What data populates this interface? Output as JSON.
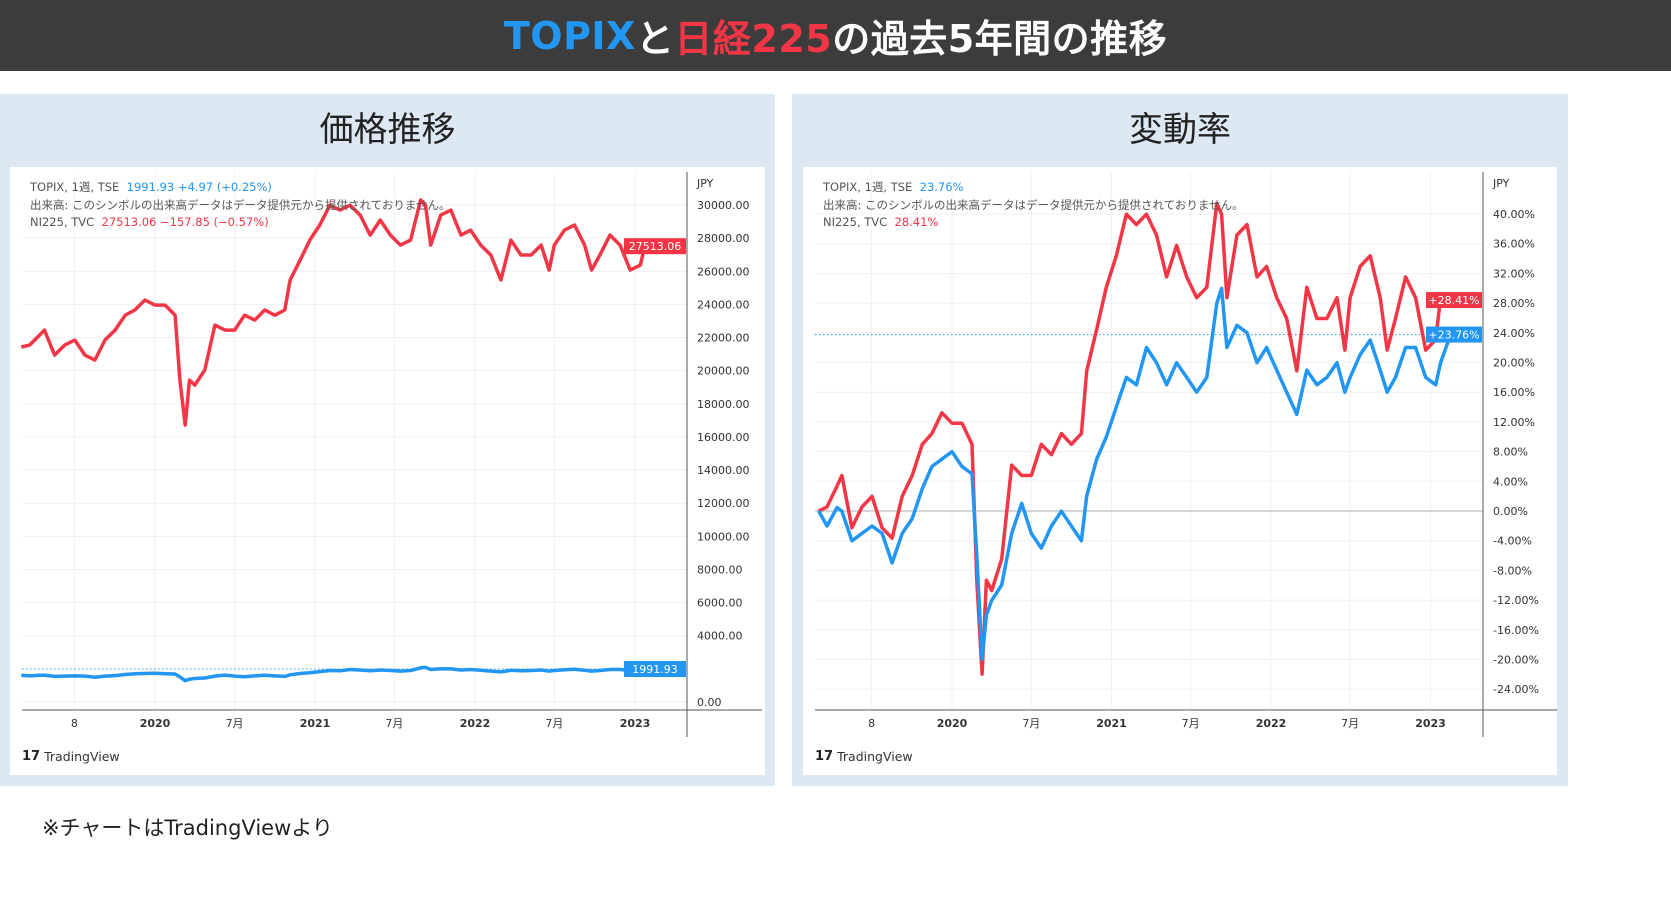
{
  "title": {
    "part1": "TOPIX",
    "part2": "と",
    "part3": "日経225",
    "part4": "の過去5年間の推移"
  },
  "colors": {
    "topix": "#2196f3",
    "nikkei": "#f23645",
    "titlebar": "#3c3c3c",
    "panel": "#dde8f3"
  },
  "footer": "※チャートはTradingViewより",
  "logo_text": "TradingView",
  "left_panel": {
    "title": "価格推移",
    "legend": {
      "topix_label": "TOPIX, 1週, TSE",
      "topix_values": "1991.93  +4.97 (+0.25%)",
      "volume_note": "出来高: このシンボルの出来高データはデータ提供元から提供されておりません。",
      "nikkei_label": "NI225, TVC",
      "nikkei_values": "27513.06  −157.85 (−0.57%)"
    }
  },
  "right_panel": {
    "title": "変動率",
    "legend": {
      "topix_label": "TOPIX, 1週, TSE",
      "topix_values": "23.76%",
      "volume_note": "出来高: このシンボルの出来高データはデータ提供元から提供されておりません。",
      "nikkei_label": "NI225, TVC",
      "nikkei_values": "28.41%"
    }
  },
  "chart_data": [
    {
      "type": "line",
      "title": "価格推移",
      "unit": "JPY",
      "ylim": [
        0,
        31000
      ],
      "yticks": [
        "30000.00",
        "28000.00",
        "26000.00",
        "24000.00",
        "22000.00",
        "20000.00",
        "18000.00",
        "16000.00",
        "14000.00",
        "12000.00",
        "10000.00",
        "8000.00",
        "6000.00",
        "4000.00",
        "0.00"
      ],
      "ytick_values": [
        30000,
        28000,
        26000,
        24000,
        22000,
        20000,
        18000,
        16000,
        14000,
        12000,
        10000,
        8000,
        6000,
        4000,
        0
      ],
      "xticks": [
        {
          "label": "8",
          "date": "2019-07-01"
        },
        {
          "label": "2020",
          "date": "2020-01-01"
        },
        {
          "label": "7月",
          "date": "2020-07-01"
        },
        {
          "label": "2021",
          "date": "2021-01-01"
        },
        {
          "label": "7月",
          "date": "2021-07-01"
        },
        {
          "label": "2022",
          "date": "2022-01-01"
        },
        {
          "label": "7月",
          "date": "2022-07-01"
        },
        {
          "label": "2023",
          "date": "2023-01-01"
        }
      ],
      "last_labels": {
        "nikkei": "27513.06",
        "topix": "1991.93"
      },
      "grid": true
    },
    {
      "type": "line",
      "title": "変動率",
      "unit": "JPY",
      "ylim": [
        -26,
        44
      ],
      "yticks": [
        "40.00%",
        "36.00%",
        "32.00%",
        "28.00%",
        "24.00%",
        "20.00%",
        "16.00%",
        "12.00%",
        "8.00%",
        "4.00%",
        "0.00%",
        "-4.00%",
        "-8.00%",
        "-12.00%",
        "-16.00%",
        "-20.00%",
        "-24.00%"
      ],
      "ytick_values": [
        40,
        36,
        32,
        28,
        24,
        20,
        16,
        12,
        8,
        4,
        0,
        -4,
        -8,
        -12,
        -16,
        -20,
        -24
      ],
      "xticks": [
        {
          "label": "8",
          "date": "2019-07-01"
        },
        {
          "label": "2020",
          "date": "2020-01-01"
        },
        {
          "label": "7月",
          "date": "2020-07-01"
        },
        {
          "label": "2021",
          "date": "2021-01-01"
        },
        {
          "label": "7月",
          "date": "2021-07-01"
        },
        {
          "label": "2022",
          "date": "2022-01-01"
        },
        {
          "label": "7月",
          "date": "2022-07-01"
        },
        {
          "label": "2023",
          "date": "2023-01-01"
        }
      ],
      "last_labels": {
        "nikkei": "+28.41%",
        "topix": "+23.76%"
      },
      "grid": true
    }
  ],
  "series": {
    "dates": [
      "2019-03-02",
      "2019-03-21",
      "2019-04-13",
      "2019-04-24",
      "2019-05-17",
      "2019-06-09",
      "2019-07-02",
      "2019-07-25",
      "2019-08-17",
      "2019-09-09",
      "2019-10-02",
      "2019-10-25",
      "2019-11-16",
      "2019-12-09",
      "2020-01-01",
      "2020-01-24",
      "2020-02-16",
      "2020-02-27",
      "2020-03-10",
      "2020-03-20",
      "2020-04-01",
      "2020-04-24",
      "2020-05-17",
      "2020-06-09",
      "2020-07-01",
      "2020-07-24",
      "2020-08-16",
      "2020-09-08",
      "2020-10-01",
      "2020-10-24",
      "2020-11-05",
      "2020-11-28",
      "2020-12-20",
      "2021-01-12",
      "2021-02-04",
      "2021-02-27",
      "2021-03-22",
      "2021-04-14",
      "2021-05-07",
      "2021-05-30",
      "2021-06-22",
      "2021-07-15",
      "2021-08-07",
      "2021-08-30",
      "2021-09-10",
      "2021-09-22",
      "2021-10-15",
      "2021-11-07",
      "2021-11-30",
      "2021-12-22",
      "2022-01-14",
      "2022-02-06",
      "2022-03-01",
      "2022-03-24",
      "2022-04-16",
      "2022-05-09",
      "2022-06-01",
      "2022-06-19",
      "2022-07-01",
      "2022-07-24",
      "2022-08-16",
      "2022-09-08",
      "2022-09-24",
      "2022-10-13",
      "2022-11-05",
      "2022-11-28",
      "2022-12-21",
      "2023-01-13",
      "2023-01-24",
      "2023-02-16"
    ],
    "nikkei": [
      21426,
      21545,
      22150,
      22450,
      20940,
      21545,
      21850,
      20940,
      20640,
      21850,
      22450,
      23350,
      23660,
      24260,
      23960,
      23960,
      23350,
      19430,
      16720,
      19430,
      19130,
      20040,
      22750,
      22450,
      22450,
      23350,
      23050,
      23660,
      23350,
      23660,
      25470,
      26670,
      27880,
      28790,
      29990,
      29690,
      29990,
      29390,
      28180,
      29090,
      28180,
      27580,
      27880,
      30300,
      29990,
      27580,
      29390,
      29690,
      28180,
      28480,
      27580,
      26980,
      25470,
      27880,
      26980,
      26980,
      27580,
      26070,
      27580,
      28480,
      28790,
      27580,
      26070,
      26980,
      28180,
      27580,
      26070,
      26370,
      27580,
      27513.06
    ],
    "topix": [
      1609.5,
      1577,
      1617,
      1609,
      1545,
      1561,
      1577,
      1561,
      1497,
      1561,
      1593,
      1658,
      1706,
      1722,
      1738,
      1706,
      1690,
      1513,
      1288,
      1384,
      1416,
      1449,
      1561,
      1626,
      1561,
      1529,
      1577,
      1609,
      1577,
      1545,
      1642,
      1722,
      1770,
      1835,
      1899,
      1883,
      1964,
      1931,
      1883,
      1931,
      1899,
      1867,
      1899,
      2060,
      2092,
      1964,
      2012,
      1996,
      1931,
      1964,
      1915,
      1867,
      1819,
      1915,
      1883,
      1899,
      1931,
      1867,
      1899,
      1948,
      1980,
      1915,
      1867,
      1899,
      1964,
      1964,
      1899,
      1883,
      1931,
      1991.93
    ]
  }
}
